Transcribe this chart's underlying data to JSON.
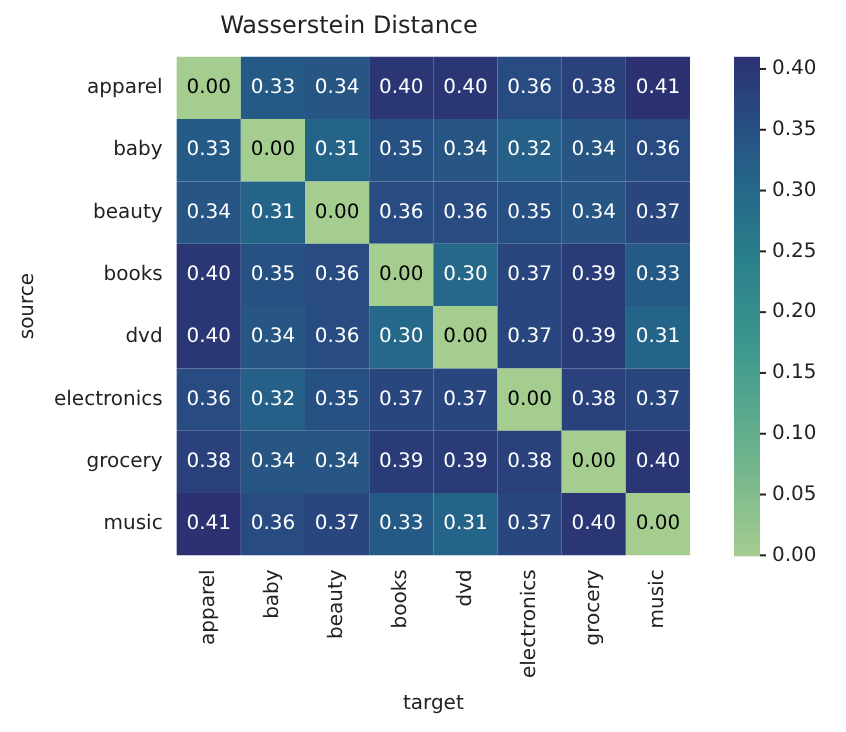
{
  "chart_data": {
    "type": "heatmap",
    "title": "Wasserstein Distance",
    "xlabel": "target",
    "ylabel": "source",
    "categories": [
      "apparel",
      "baby",
      "beauty",
      "books",
      "dvd",
      "electronics",
      "grocery",
      "music"
    ],
    "y_categories": [
      "apparel",
      "baby",
      "beauty",
      "books",
      "dvd",
      "electronics",
      "grocery",
      "music"
    ],
    "cells": [
      [
        0.0,
        0.33,
        0.34,
        0.4,
        0.4,
        0.36,
        0.38,
        0.41
      ],
      [
        0.33,
        0.0,
        0.31,
        0.35,
        0.34,
        0.32,
        0.34,
        0.36
      ],
      [
        0.34,
        0.31,
        0.0,
        0.36,
        0.36,
        0.35,
        0.34,
        0.37
      ],
      [
        0.4,
        0.35,
        0.36,
        0.0,
        0.3,
        0.37,
        0.39,
        0.33
      ],
      [
        0.4,
        0.34,
        0.36,
        0.3,
        0.0,
        0.37,
        0.39,
        0.31
      ],
      [
        0.36,
        0.32,
        0.35,
        0.37,
        0.37,
        0.0,
        0.38,
        0.37
      ],
      [
        0.38,
        0.34,
        0.34,
        0.39,
        0.39,
        0.38,
        0.0,
        0.4
      ],
      [
        0.41,
        0.36,
        0.37,
        0.33,
        0.31,
        0.37,
        0.4,
        0.0
      ]
    ],
    "cell_labels": [
      [
        "0.00",
        "0.33",
        "0.34",
        "0.40",
        "0.40",
        "0.36",
        "0.38",
        "0.41"
      ],
      [
        "0.33",
        "0.00",
        "0.31",
        "0.35",
        "0.34",
        "0.32",
        "0.34",
        "0.36"
      ],
      [
        "0.34",
        "0.31",
        "0.00",
        "0.36",
        "0.36",
        "0.35",
        "0.34",
        "0.37"
      ],
      [
        "0.40",
        "0.35",
        "0.36",
        "0.00",
        "0.30",
        "0.37",
        "0.39",
        "0.33"
      ],
      [
        "0.40",
        "0.34",
        "0.36",
        "0.30",
        "0.00",
        "0.37",
        "0.39",
        "0.31"
      ],
      [
        "0.36",
        "0.32",
        "0.35",
        "0.37",
        "0.37",
        "0.00",
        "0.38",
        "0.37"
      ],
      [
        "0.38",
        "0.34",
        "0.34",
        "0.39",
        "0.39",
        "0.38",
        "0.00",
        "0.40"
      ],
      [
        "0.41",
        "0.36",
        "0.37",
        "0.33",
        "0.31",
        "0.37",
        "0.40",
        "0.00"
      ]
    ],
    "clim": [
      0,
      0.41
    ],
    "cticks": [
      {
        "value": 0,
        "label": "0.00"
      },
      {
        "value": 0.05,
        "label": "0.05"
      },
      {
        "value": 0.1,
        "label": "0.10"
      },
      {
        "value": 0.15,
        "label": "0.15"
      },
      {
        "value": 0.2,
        "label": "0.20"
      },
      {
        "value": 0.25,
        "label": "0.25"
      },
      {
        "value": 0.3,
        "label": "0.30"
      },
      {
        "value": 0.35,
        "label": "0.35"
      },
      {
        "value": 0.4,
        "label": "0.40"
      }
    ]
  }
}
